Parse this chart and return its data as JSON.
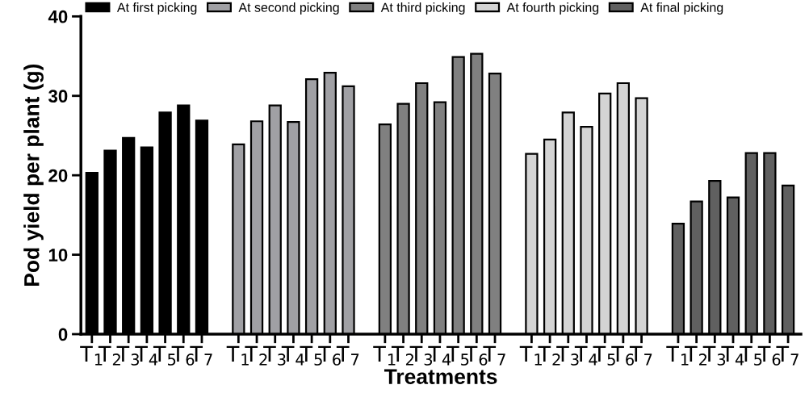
{
  "chart_data": {
    "type": "bar",
    "xlabel": "Treatments",
    "ylabel": "Pod yield per plant (g)",
    "categories": [
      "T$_{1}$",
      "T$_{2}$",
      "T$_{3}$",
      "T$_{4}$",
      "T$_{5}$",
      "T$_{6}$",
      "T$_{7}$",
      null,
      "T$_{1}$",
      "T$_{2}$",
      "T$_{3}$",
      "T$_{4}$",
      "T$_{5}$",
      "T$_{6}$",
      "T$_{7}$",
      null,
      "T$_{1}$",
      "T$_{2}$",
      "T$_{3}$",
      "T$_{4}$",
      "T$_{5}$",
      "T$_{6}$",
      "T$_{7}$",
      null,
      "T$_{1}$",
      "T$_{2}$",
      "T$_{3}$",
      "T$_{4}$",
      "T$_{5}$",
      "T$_{6}$",
      "T$_{7}$",
      null,
      "T$_{1}$",
      "T$_{2}$",
      "T$_{3}$",
      "T$_{4}$",
      "T$_{5}$",
      "T$_{6}$",
      "T$_{7}$"
    ],
    "series": [
      {
        "name": "At first picking",
        "color": "#000000",
        "values": [
          20.3,
          23.1,
          24.7,
          23.5,
          27.9,
          28.8,
          26.9,
          null,
          null,
          null,
          null,
          null,
          null,
          null,
          null,
          null,
          null,
          null,
          null,
          null,
          null,
          null,
          null,
          null,
          null,
          null,
          null,
          null,
          null,
          null,
          null,
          null,
          null,
          null,
          null,
          null,
          null,
          null,
          null
        ]
      },
      {
        "name": "At second picking",
        "color": "#a0a0a4",
        "values": [
          null,
          null,
          null,
          null,
          null,
          null,
          null,
          null,
          23.9,
          26.8,
          28.8,
          26.7,
          32.1,
          32.9,
          31.2,
          null,
          null,
          null,
          null,
          null,
          null,
          null,
          null,
          null,
          null,
          null,
          null,
          null,
          null,
          null,
          null,
          null,
          null,
          null,
          null,
          null,
          null,
          null,
          null
        ]
      },
      {
        "name": "At third picking",
        "color": "#808080",
        "values": [
          null,
          null,
          null,
          null,
          null,
          null,
          null,
          null,
          null,
          null,
          null,
          null,
          null,
          null,
          null,
          null,
          26.4,
          29.0,
          31.6,
          29.2,
          34.9,
          35.3,
          32.8,
          null,
          null,
          null,
          null,
          null,
          null,
          null,
          null,
          null,
          null,
          null,
          null,
          null,
          null,
          null,
          null
        ]
      },
      {
        "name": "At fourth picking",
        "color": "#d4d4d4",
        "values": [
          null,
          null,
          null,
          null,
          null,
          null,
          null,
          null,
          null,
          null,
          null,
          null,
          null,
          null,
          null,
          null,
          null,
          null,
          null,
          null,
          null,
          null,
          null,
          null,
          22.7,
          24.5,
          27.9,
          26.1,
          30.3,
          31.6,
          29.7,
          null,
          null,
          null,
          null,
          null,
          null,
          null,
          null
        ]
      },
      {
        "name": "At final picking",
        "color": "#606060",
        "values": [
          null,
          null,
          null,
          null,
          null,
          null,
          null,
          null,
          null,
          null,
          null,
          null,
          null,
          null,
          null,
          null,
          null,
          null,
          null,
          null,
          null,
          null,
          null,
          null,
          null,
          null,
          null,
          null,
          null,
          null,
          null,
          null,
          13.9,
          16.7,
          19.3,
          17.2,
          22.8,
          22.8,
          18.7
        ]
      }
    ],
    "ylim": [
      0,
      40
    ],
    "yticks": [
      0,
      10,
      20,
      30,
      40
    ],
    "grid": false,
    "legend": "top"
  }
}
